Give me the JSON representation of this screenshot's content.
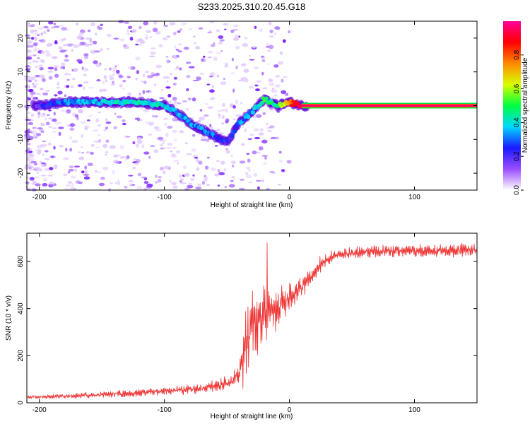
{
  "figure": {
    "title": "S233.2025.310.20.45.G18"
  },
  "chart_data": [
    {
      "type": "heatmap",
      "xlabel": "Height of straight line (km)",
      "ylabel": "Frequency (Hz)",
      "xlim": [
        -210,
        150
      ],
      "ylim": [
        -25,
        25
      ],
      "xticks": [
        -200,
        -100,
        0,
        100
      ],
      "yticks": [
        -20,
        -10,
        0,
        10,
        20
      ],
      "colorbar": {
        "label": "Normalized spectral amplitude",
        "range": [
          0,
          1
        ],
        "ticks": [
          0.0,
          0.2,
          0.4,
          0.6,
          0.8
        ],
        "tick_labels": [
          "0.0",
          "0.2",
          "0.4",
          "0.6",
          "0.8"
        ],
        "colormap": [
          "#ffffff",
          "#9a4cff",
          "#1a1aff",
          "#00d8ff",
          "#00ff40",
          "#d8ff00",
          "#ff8800",
          "#ff0000",
          "#ff0099"
        ]
      },
      "ridge": {
        "x": [
          -200,
          -180,
          -160,
          -140,
          -120,
          -110,
          -100,
          -90,
          -80,
          -70,
          -60,
          -50,
          -40,
          -30,
          -20,
          -10,
          0,
          10,
          20,
          60,
          100,
          150
        ],
        "y": [
          0,
          1,
          1,
          1,
          1,
          0.5,
          0,
          -2,
          -5,
          -7,
          -9,
          -11,
          -5,
          -2,
          2,
          0,
          1,
          0,
          0,
          0,
          0,
          0
        ],
        "amplitude": [
          0.2,
          0.3,
          0.35,
          0.4,
          0.4,
          0.38,
          0.38,
          0.35,
          0.32,
          0.3,
          0.3,
          0.22,
          0.3,
          0.35,
          0.5,
          0.45,
          0.8,
          0.9,
          0.9,
          0.9,
          0.9,
          0.9
        ]
      }
    },
    {
      "type": "line",
      "xlabel": "Height of straight line (km)",
      "ylabel": "SNR (10 * v/v)",
      "xlim": [
        -210,
        150
      ],
      "ylim": [
        0,
        720
      ],
      "xticks": [
        -200,
        -100,
        0,
        100
      ],
      "yticks": [
        0,
        200,
        400,
        600
      ],
      "color": "#ee3333",
      "x": [
        -210,
        -180,
        -150,
        -120,
        -90,
        -70,
        -55,
        -45,
        -40,
        -35,
        -30,
        -25,
        -20,
        -15,
        -10,
        -5,
        0,
        10,
        20,
        30,
        40,
        60,
        100,
        150
      ],
      "y": [
        25,
        28,
        35,
        42,
        55,
        60,
        75,
        95,
        130,
        250,
        330,
        360,
        380,
        390,
        395,
        410,
        440,
        490,
        560,
        610,
        630,
        640,
        645,
        650
      ],
      "amp": [
        8,
        10,
        15,
        18,
        22,
        25,
        30,
        40,
        80,
        180,
        190,
        170,
        150,
        120,
        100,
        90,
        70,
        55,
        45,
        35,
        30,
        30,
        30,
        30
      ],
      "peak": {
        "x": -18,
        "y": 680
      }
    }
  ]
}
